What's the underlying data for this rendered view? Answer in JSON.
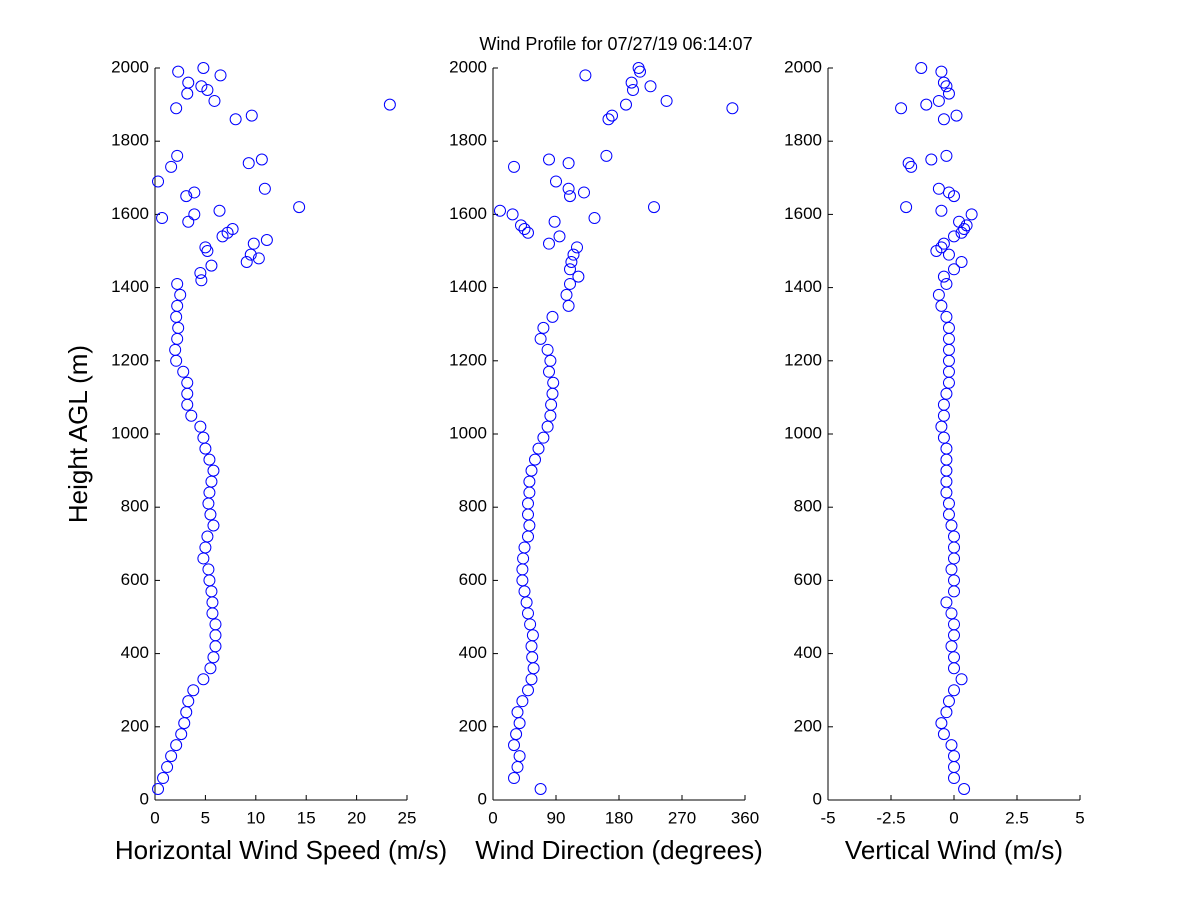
{
  "chart_data": [
    {
      "type": "scatter",
      "title": "Wind Profile for  07/27/19 06:14:07",
      "ylabel": "Height AGL (m)",
      "xlabel": "Horizontal Wind Speed (m/s)",
      "color": "#0000ff",
      "xlim": [
        0,
        25
      ],
      "xticks": [
        0,
        5,
        10,
        15,
        20,
        25
      ],
      "ylim": [
        0,
        2000
      ],
      "yticks": [
        0,
        200,
        400,
        600,
        800,
        1000,
        1200,
        1400,
        1600,
        1800,
        2000
      ],
      "x": [
        0.3,
        0.8,
        1.2,
        1.6,
        2.1,
        2.6,
        2.9,
        3.1,
        3.3,
        3.8,
        4.8,
        5.5,
        5.8,
        6.0,
        6.0,
        6.0,
        5.7,
        5.7,
        5.6,
        5.4,
        5.3,
        4.8,
        5.0,
        5.2,
        5.8,
        5.5,
        5.3,
        5.4,
        5.6,
        5.8,
        5.4,
        5.0,
        4.8,
        4.5,
        3.6,
        3.2,
        3.2,
        3.2,
        2.8,
        2.1,
        2.0,
        2.2,
        2.3,
        2.1,
        2.2,
        2.5,
        2.2,
        4.6,
        4.5,
        5.6,
        9.1,
        10.3,
        9.5,
        5.2,
        5.0,
        9.8,
        11.1,
        6.7,
        7.2,
        7.7,
        3.3,
        0.7,
        3.9,
        6.4,
        14.3,
        3.1,
        3.9,
        10.9,
        0.3,
        1.6,
        9.3,
        10.6,
        2.2,
        8.0,
        9.6,
        2.1,
        23.3,
        5.9,
        3.2,
        5.2,
        4.6,
        3.3,
        6.5,
        2.3,
        4.8
      ],
      "y": [
        30,
        60,
        90,
        120,
        150,
        180,
        210,
        240,
        270,
        300,
        330,
        360,
        390,
        420,
        450,
        480,
        510,
        540,
        570,
        600,
        630,
        660,
        690,
        720,
        750,
        780,
        810,
        840,
        870,
        900,
        930,
        960,
        990,
        1020,
        1050,
        1080,
        1110,
        1140,
        1170,
        1200,
        1230,
        1260,
        1290,
        1320,
        1350,
        1380,
        1410,
        1420,
        1440,
        1460,
        1470,
        1480,
        1490,
        1500,
        1510,
        1520,
        1530,
        1540,
        1550,
        1560,
        1580,
        1590,
        1600,
        1610,
        1620,
        1650,
        1660,
        1670,
        1690,
        1730,
        1740,
        1750,
        1760,
        1860,
        1870,
        1890,
        1900,
        1910,
        1930,
        1940,
        1950,
        1960,
        1980,
        1990,
        2000
      ]
    },
    {
      "type": "scatter",
      "xlabel": "Wind Direction (degrees)",
      "color": "#0000ff",
      "xlim": [
        0,
        360
      ],
      "xticks": [
        0,
        90,
        180,
        270,
        360
      ],
      "ylim": [
        0,
        2000
      ],
      "yticks": [
        0,
        200,
        400,
        600,
        800,
        1000,
        1200,
        1400,
        1600,
        1800,
        2000
      ],
      "x": [
        68,
        30,
        35,
        38,
        30,
        33,
        38,
        35,
        42,
        50,
        55,
        58,
        56,
        55,
        57,
        53,
        50,
        48,
        45,
        42,
        42,
        43,
        45,
        50,
        52,
        50,
        50,
        52,
        52,
        55,
        60,
        65,
        72,
        78,
        82,
        83,
        85,
        86,
        80,
        82,
        78,
        68,
        72,
        85,
        108,
        105,
        110,
        122,
        110,
        112,
        115,
        120,
        80,
        95,
        50,
        45,
        40,
        88,
        145,
        28,
        10,
        230,
        110,
        130,
        108,
        90,
        30,
        108,
        80,
        162,
        165,
        170,
        342,
        190,
        248,
        200,
        225,
        198,
        132,
        210,
        208
      ],
      "y": [
        30,
        60,
        90,
        120,
        150,
        180,
        210,
        240,
        270,
        300,
        330,
        360,
        390,
        420,
        450,
        480,
        510,
        540,
        570,
        600,
        630,
        660,
        690,
        720,
        750,
        780,
        810,
        840,
        870,
        900,
        930,
        960,
        990,
        1020,
        1050,
        1080,
        1110,
        1140,
        1170,
        1200,
        1230,
        1260,
        1290,
        1320,
        1350,
        1380,
        1410,
        1430,
        1450,
        1470,
        1490,
        1510,
        1520,
        1540,
        1550,
        1560,
        1570,
        1580,
        1590,
        1600,
        1610,
        1620,
        1650,
        1660,
        1670,
        1690,
        1730,
        1740,
        1750,
        1760,
        1860,
        1870,
        1890,
        1900,
        1910,
        1940,
        1950,
        1960,
        1980,
        1990,
        2000
      ]
    },
    {
      "type": "scatter",
      "xlabel": "Vertical Wind (m/s)",
      "color": "#0000ff",
      "xlim": [
        -5,
        5
      ],
      "xticks": [
        -5,
        -2.5,
        0,
        2.5,
        5
      ],
      "ylim": [
        0,
        2000
      ],
      "yticks": [
        0,
        200,
        400,
        600,
        800,
        1000,
        1200,
        1400,
        1600,
        1800,
        2000
      ],
      "x": [
        0.4,
        0.0,
        0.0,
        0.0,
        -0.1,
        -0.4,
        -0.5,
        -0.3,
        -0.2,
        0.0,
        0.3,
        0.0,
        0.0,
        -0.1,
        0.0,
        0.0,
        -0.1,
        -0.3,
        0.0,
        0.0,
        -0.1,
        0.0,
        0.0,
        0.0,
        -0.1,
        -0.2,
        -0.2,
        -0.3,
        -0.3,
        -0.3,
        -0.3,
        -0.3,
        -0.4,
        -0.5,
        -0.4,
        -0.4,
        -0.3,
        -0.2,
        -0.2,
        -0.2,
        -0.2,
        -0.2,
        -0.2,
        -0.3,
        -0.5,
        -0.6,
        -0.3,
        -0.4,
        0.0,
        0.3,
        -0.2,
        -0.7,
        -0.5,
        -0.4,
        0.0,
        0.3,
        0.4,
        0.5,
        0.2,
        0.7,
        -0.5,
        -1.9,
        0.0,
        -0.2,
        -0.6,
        -1.7,
        -1.8,
        -0.9,
        -0.3,
        -0.4,
        0.1,
        -2.1,
        -1.1,
        -0.6,
        -0.2,
        -0.3,
        -0.4,
        -0.5,
        -1.3
      ],
      "y": [
        30,
        60,
        90,
        120,
        150,
        180,
        210,
        240,
        270,
        300,
        330,
        360,
        390,
        420,
        450,
        480,
        510,
        540,
        570,
        600,
        630,
        660,
        690,
        720,
        750,
        780,
        810,
        840,
        870,
        900,
        930,
        960,
        990,
        1020,
        1050,
        1080,
        1110,
        1140,
        1170,
        1200,
        1230,
        1260,
        1290,
        1320,
        1350,
        1380,
        1410,
        1430,
        1450,
        1470,
        1490,
        1500,
        1510,
        1520,
        1540,
        1550,
        1560,
        1570,
        1580,
        1600,
        1610,
        1620,
        1650,
        1660,
        1670,
        1730,
        1740,
        1750,
        1760,
        1860,
        1870,
        1890,
        1900,
        1910,
        1930,
        1950,
        1960,
        1990,
        2000
      ]
    }
  ]
}
